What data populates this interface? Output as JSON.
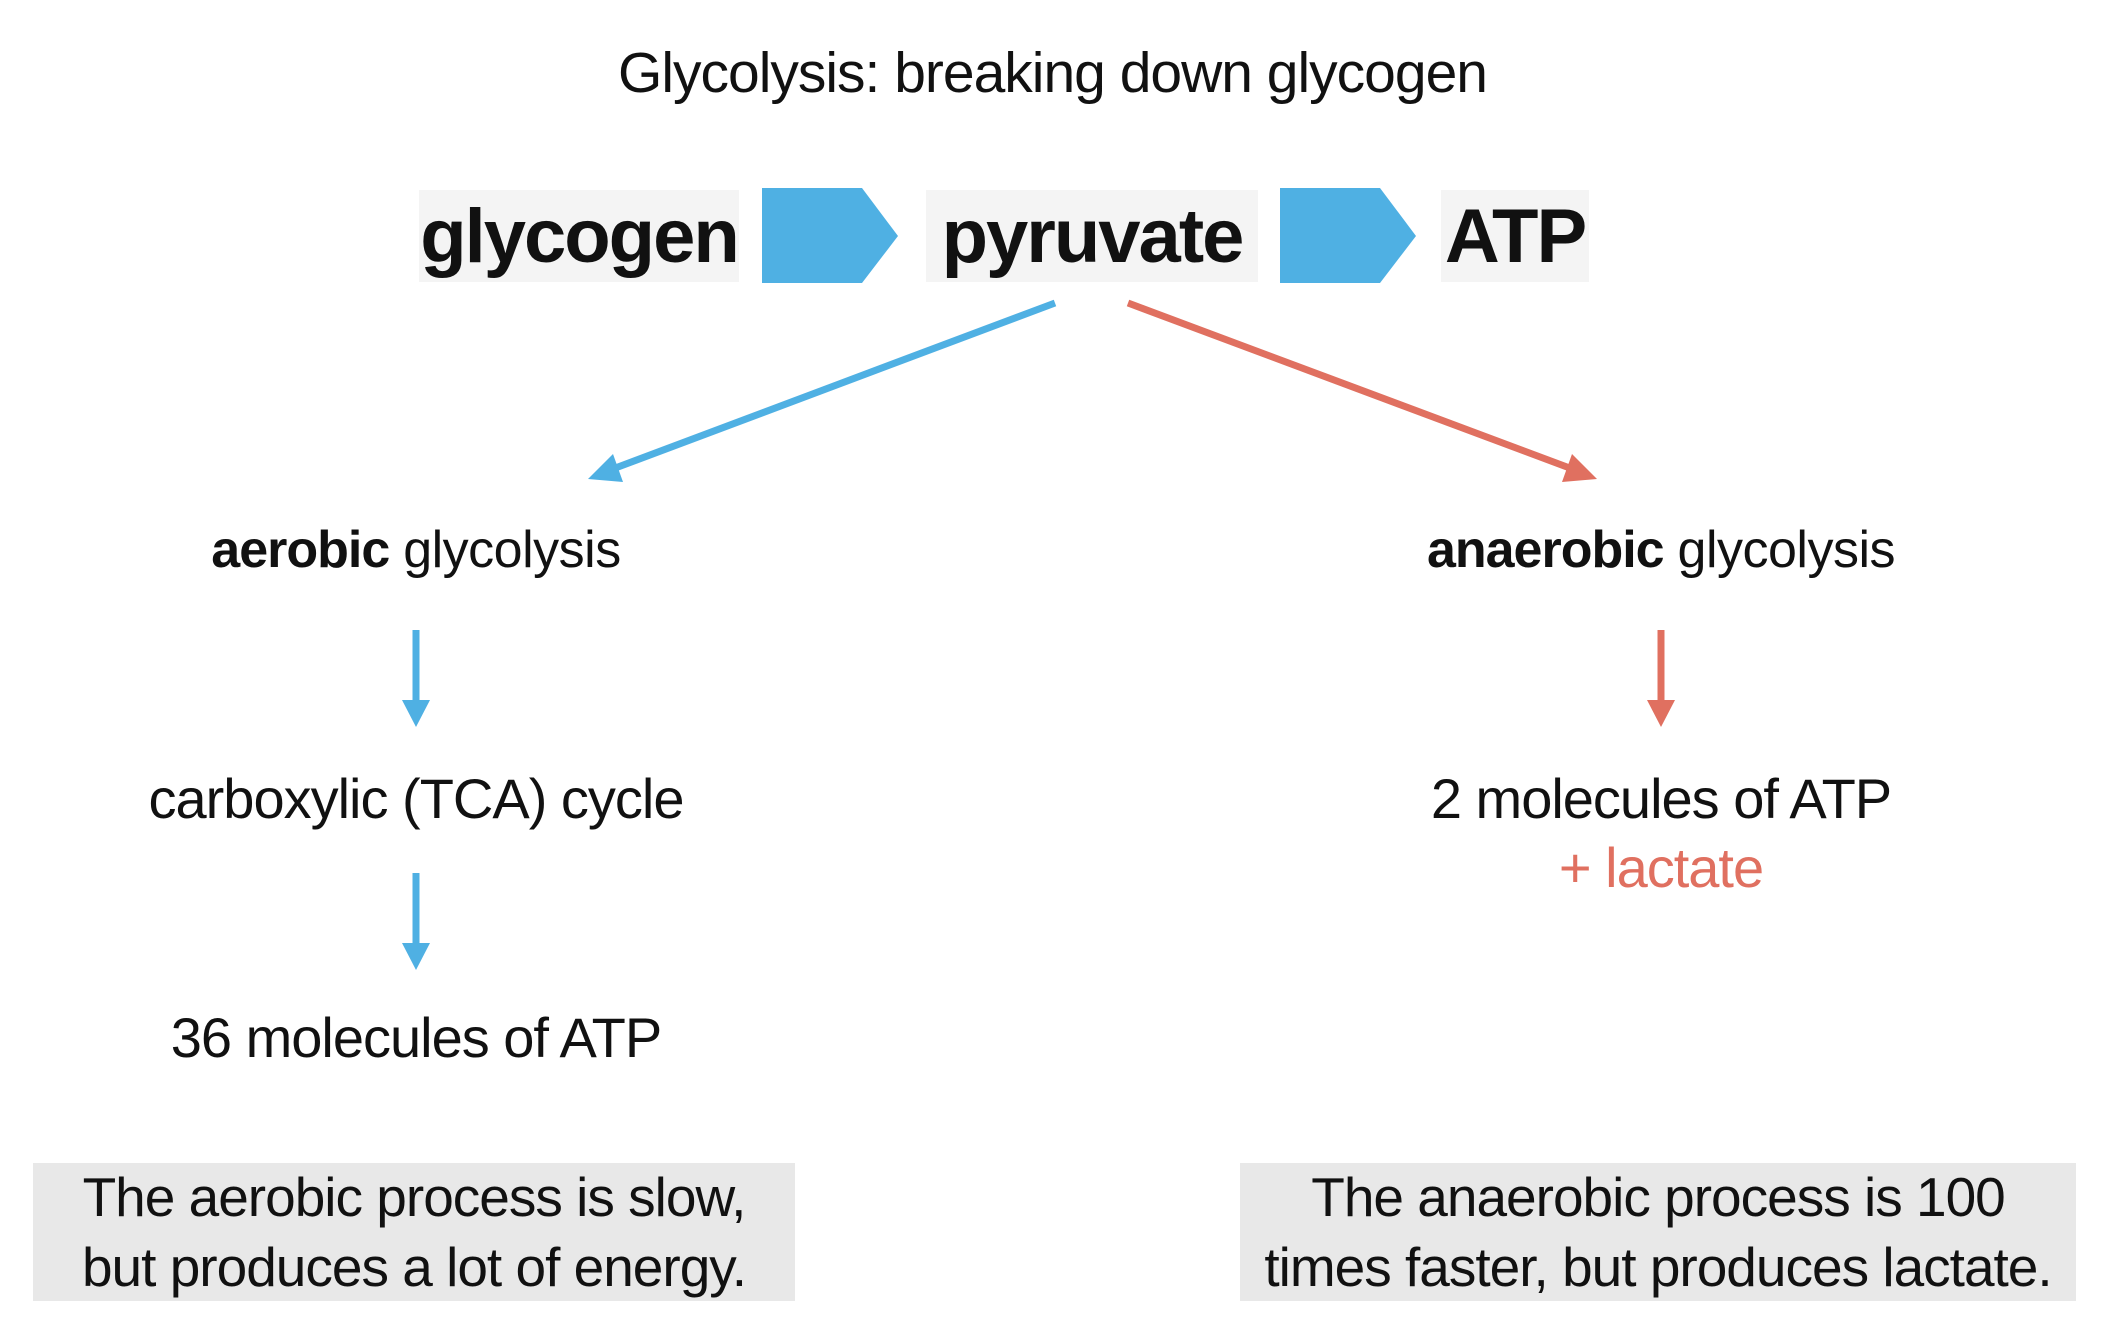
{
  "title": "Glycolysis: breaking down glycogen",
  "colors": {
    "aerobic": "#4fb0e3",
    "anaerobic": "#e07060",
    "box_bg": "#f4f4f4",
    "note_bg": "#e8e8e8",
    "text": "#111111"
  },
  "chain": {
    "glycogen": "glycogen",
    "pyruvate": "pyruvate",
    "atp": "ATP"
  },
  "aerobic": {
    "label_bold": "aerobic",
    "label_rest": " glycolysis",
    "step1": "carboxylic (TCA) cycle",
    "step2": "36 molecules of ATP",
    "note_line1": "The aerobic process is slow,",
    "note_line2": "but produces a lot of energy."
  },
  "anaerobic": {
    "label_bold": "anaerobic",
    "label_rest": " glycolysis",
    "step1": "2 molecules of ATP",
    "step1_extra": "+ lactate",
    "note_line1": "The anaerobic process is 100",
    "note_line2": "times faster, but produces lactate."
  }
}
